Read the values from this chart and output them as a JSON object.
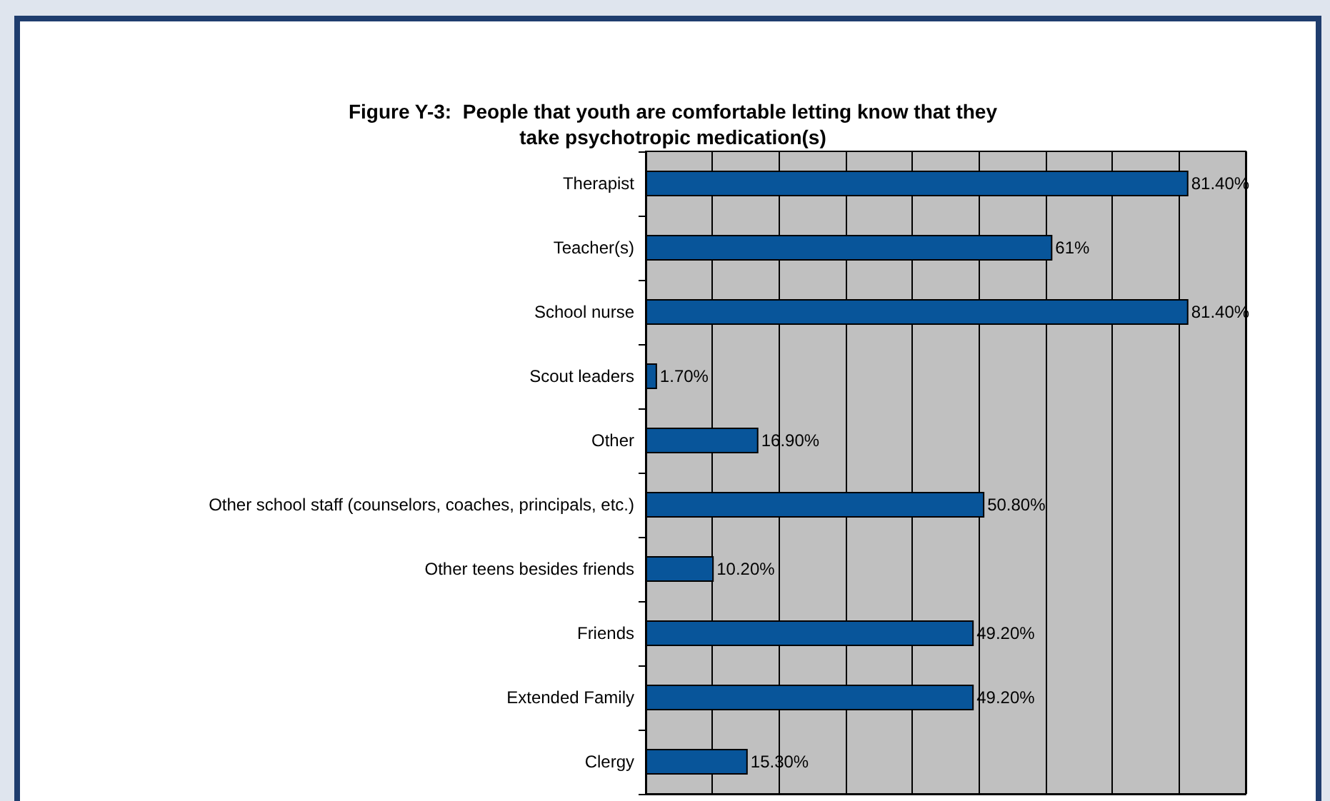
{
  "chart_data": {
    "type": "bar",
    "orientation": "horizontal",
    "title": "Figure Y-3:  People that youth are comfortable letting know that they\ntake psychotropic medication(s)",
    "categories": [
      "Therapist",
      "Teacher(s)",
      "School nurse",
      "Scout leaders",
      "Other",
      "Other school staff (counselors, coaches, principals, etc.)",
      "Other teens besides friends",
      "Friends",
      "Extended Family",
      "Clergy"
    ],
    "values": [
      81.4,
      61,
      81.4,
      1.7,
      16.9,
      50.8,
      10.2,
      49.2,
      49.2,
      15.3
    ],
    "value_labels": [
      "81.40%",
      "61%",
      "81.40%",
      "1.70%",
      "16.90%",
      "50.80%",
      "10.20%",
      "49.20%",
      "49.20%",
      "15.30%"
    ],
    "color": "#08559a",
    "xlim": [
      0,
      90
    ],
    "xticks": [
      {
        "value": 0,
        "label": null
      },
      {
        "value": 10,
        "label": null
      },
      {
        "value": 20,
        "label": null
      },
      {
        "value": 30,
        "label": null
      },
      {
        "value": 40,
        "label": null
      },
      {
        "value": 50,
        "label": null
      },
      {
        "value": 60,
        "label": null
      },
      {
        "value": 70,
        "label": null
      },
      {
        "value": 80,
        "label": null
      },
      {
        "value": 90,
        "label": null
      }
    ],
    "tick_labels": "y",
    "grid": "x"
  }
}
